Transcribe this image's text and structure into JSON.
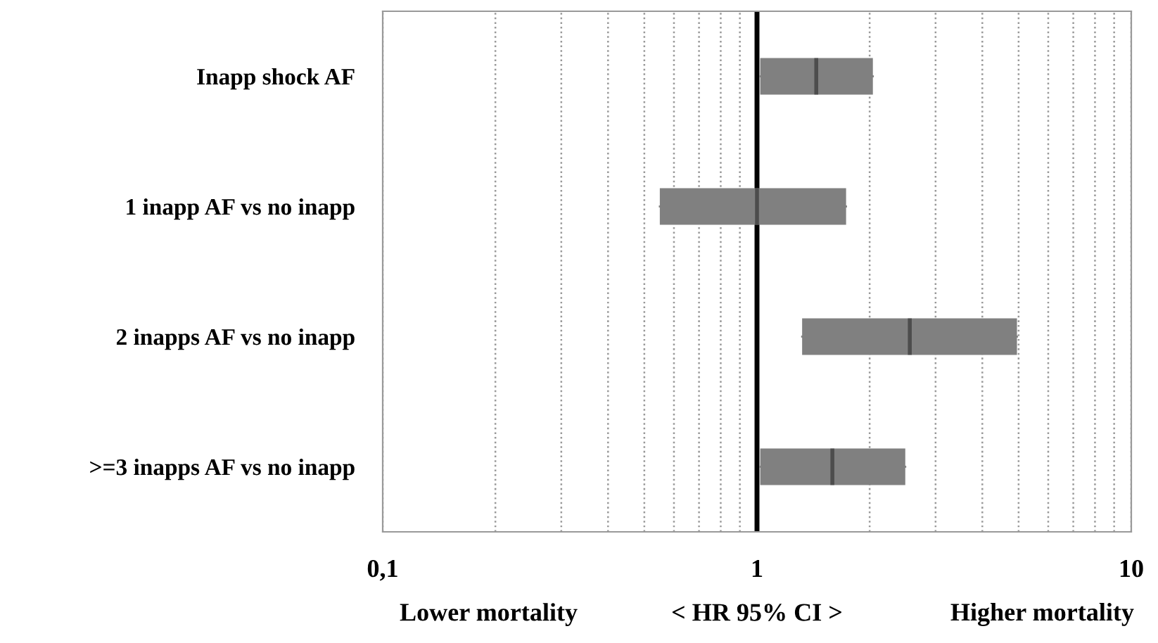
{
  "chart_data": {
    "type": "box",
    "orientation": "horizontal",
    "log": "x",
    "xlabel": "< HR 95% CI >",
    "categories": [
      "Inapp shock AF",
      "1 inapp AF vs no inapp",
      "2 inapps AF vs no inapp",
      ">=3 inapps AF vs no inapp"
    ],
    "series": [
      {
        "color": "#808080",
        "boxes": [
          {
            "low": 1.02,
            "q1": 1.02,
            "median": 1.44,
            "q3": 2.04,
            "high": 2.04
          },
          {
            "low": 0.55,
            "q1": 0.55,
            "median": 1.0,
            "q3": 1.73,
            "high": 1.73
          },
          {
            "low": 1.32,
            "q1": 1.32,
            "median": 2.56,
            "q3": 4.95,
            "high": 4.95
          },
          {
            "low": 1.02,
            "q1": 1.02,
            "median": 1.59,
            "q3": 2.49,
            "high": 2.49
          }
        ]
      }
    ],
    "xlim": [
      0.1,
      10
    ],
    "xticks": [
      {
        "value": 0.1,
        "label": "0,1"
      },
      {
        "value": 0.2,
        "label": null
      },
      {
        "value": 0.3,
        "label": null
      },
      {
        "value": 0.4,
        "label": null
      },
      {
        "value": 0.5,
        "label": null
      },
      {
        "value": 0.6,
        "label": null
      },
      {
        "value": 0.7,
        "label": null
      },
      {
        "value": 0.8,
        "label": null
      },
      {
        "value": 0.9,
        "label": null
      },
      1,
      {
        "value": 2,
        "label": null
      },
      {
        "value": 3,
        "label": null
      },
      {
        "value": 4,
        "label": null
      },
      {
        "value": 5,
        "label": null
      },
      {
        "value": 6,
        "label": null
      },
      {
        "value": 7,
        "label": null
      },
      {
        "value": 8,
        "label": null
      },
      {
        "value": 9,
        "label": null
      },
      10
    ],
    "grid": "x",
    "ref_lines": [
      {
        "axis": "x",
        "value": 1,
        "color": "#000000"
      }
    ],
    "annotations": [
      "Lower mortality",
      "Higher mortality"
    ]
  }
}
